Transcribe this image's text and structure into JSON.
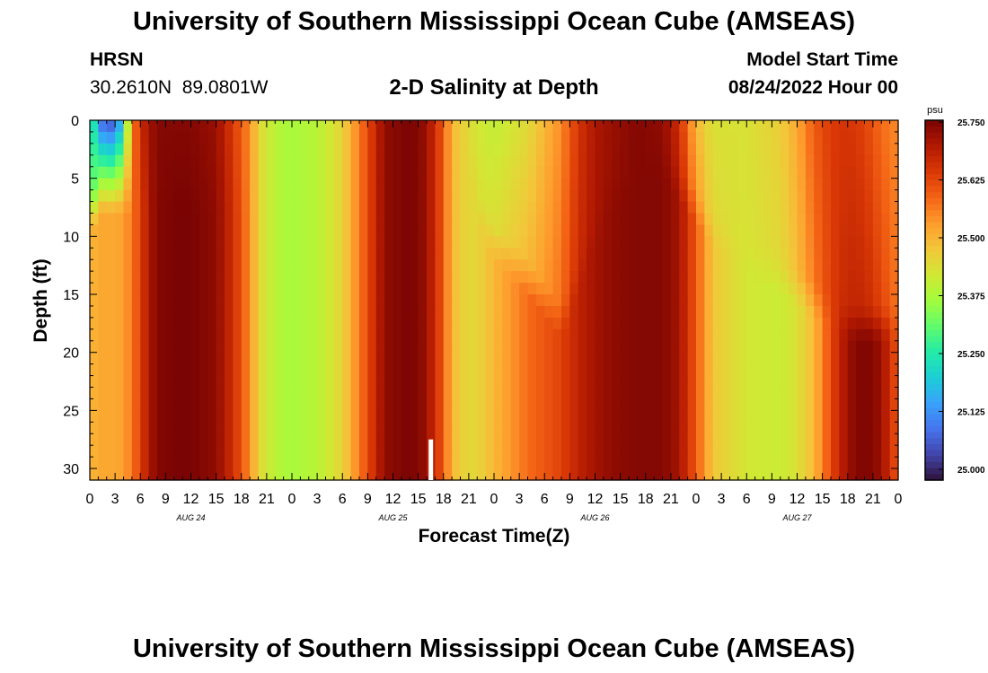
{
  "header": {
    "title": "University of Southern Mississippi Ocean Cube (AMSEAS)",
    "station": "HRSN",
    "coordinates": "30.2610N  89.0801W",
    "subtitle": "2-D Salinity at Depth",
    "model_start_label": "Model Start Time",
    "model_start_value": "08/24/2022 Hour 00"
  },
  "footer": {
    "title": "University of Southern Mississippi Ocean Cube (AMSEAS)"
  },
  "chart_data": {
    "type": "heatmap",
    "title": "2-D Salinity at Depth",
    "xlabel": "Forecast Time(Z)",
    "ylabel": "Depth (ft)",
    "x_range_hours": [
      0,
      96
    ],
    "y_range": [
      0,
      31
    ],
    "y_ticks": [
      0,
      5,
      10,
      15,
      20,
      25,
      30
    ],
    "x_tick_labels": [
      "0",
      "3",
      "6",
      "9",
      "12",
      "15",
      "18",
      "21",
      "0",
      "3",
      "6",
      "9",
      "12",
      "15",
      "18",
      "21",
      "0",
      "3",
      "6",
      "9",
      "12",
      "15",
      "18",
      "21",
      "0",
      "3",
      "6",
      "9",
      "12",
      "15",
      "18",
      "21",
      "0"
    ],
    "day_labels": [
      {
        "hour": 12,
        "label": "AUG 24"
      },
      {
        "hour": 36,
        "label": "AUG 25"
      },
      {
        "hour": 60,
        "label": "AUG 26"
      },
      {
        "hour": 84,
        "label": "AUG 27"
      }
    ],
    "current_time_marker_hour": 40.5,
    "colorbar": {
      "unit": "psu",
      "min": 25.0,
      "max": 25.75,
      "tick_labels": [
        "25.750",
        "25.625",
        "25.500",
        "25.375",
        "25.250",
        "25.125",
        "25.000"
      ],
      "colors": [
        "#30123b",
        "#4145ab",
        "#4675ed",
        "#39a2fc",
        "#1bcfd4",
        "#24eca6",
        "#61fc6c",
        "#a4fc3b",
        "#d1e834",
        "#f3c63a",
        "#fe9b2d",
        "#f36315",
        "#d93806",
        "#b11901",
        "#7a0403"
      ]
    },
    "series_note": "salinity (psu) as function of forecast hour and depth",
    "profile_keys_hours": [
      0,
      1,
      3,
      4,
      5,
      6,
      7,
      8,
      10,
      12,
      15,
      17,
      19,
      20,
      22,
      24,
      27,
      30,
      33,
      35,
      38,
      39,
      40,
      42,
      43,
      45,
      46,
      48,
      52,
      56,
      58,
      60,
      62,
      65,
      68,
      70,
      72,
      74,
      78,
      82,
      84,
      86,
      88,
      90,
      92,
      94,
      96
    ],
    "salinity_top_psu": [
      25.38,
      25.1,
      25.06,
      25.25,
      25.55,
      25.66,
      25.71,
      25.74,
      25.74,
      25.74,
      25.72,
      25.64,
      25.55,
      25.46,
      25.4,
      25.38,
      25.4,
      25.46,
      25.62,
      25.73,
      25.75,
      25.74,
      25.72,
      25.6,
      25.5,
      25.45,
      25.43,
      25.41,
      25.45,
      25.55,
      25.65,
      25.7,
      25.72,
      25.74,
      25.73,
      25.66,
      25.5,
      25.44,
      25.44,
      25.47,
      25.52,
      25.6,
      25.64,
      25.65,
      25.63,
      25.58,
      25.55
    ],
    "salinity_bottom_psu": [
      25.5,
      25.52,
      25.52,
      25.53,
      25.57,
      25.63,
      25.7,
      25.74,
      25.75,
      25.75,
      25.73,
      25.66,
      25.55,
      25.46,
      25.4,
      25.38,
      25.4,
      25.46,
      25.62,
      25.73,
      25.75,
      25.74,
      25.72,
      25.6,
      25.5,
      25.45,
      25.46,
      25.5,
      25.58,
      25.63,
      25.68,
      25.71,
      25.73,
      25.74,
      25.74,
      25.71,
      25.6,
      25.48,
      25.43,
      25.42,
      25.44,
      25.5,
      25.62,
      25.72,
      25.75,
      25.72,
      25.6
    ],
    "surface_layer_depth_ft": [
      12,
      0,
      0,
      0,
      0,
      0,
      0,
      0,
      0,
      0,
      0,
      0,
      0,
      0,
      0,
      0,
      0,
      0,
      0,
      0,
      0,
      0,
      0,
      0,
      0,
      0,
      6,
      9,
      12,
      16,
      12,
      8,
      5,
      3,
      2,
      4,
      6,
      8,
      10,
      12,
      13,
      14,
      15,
      16,
      16,
      16,
      16
    ]
  }
}
